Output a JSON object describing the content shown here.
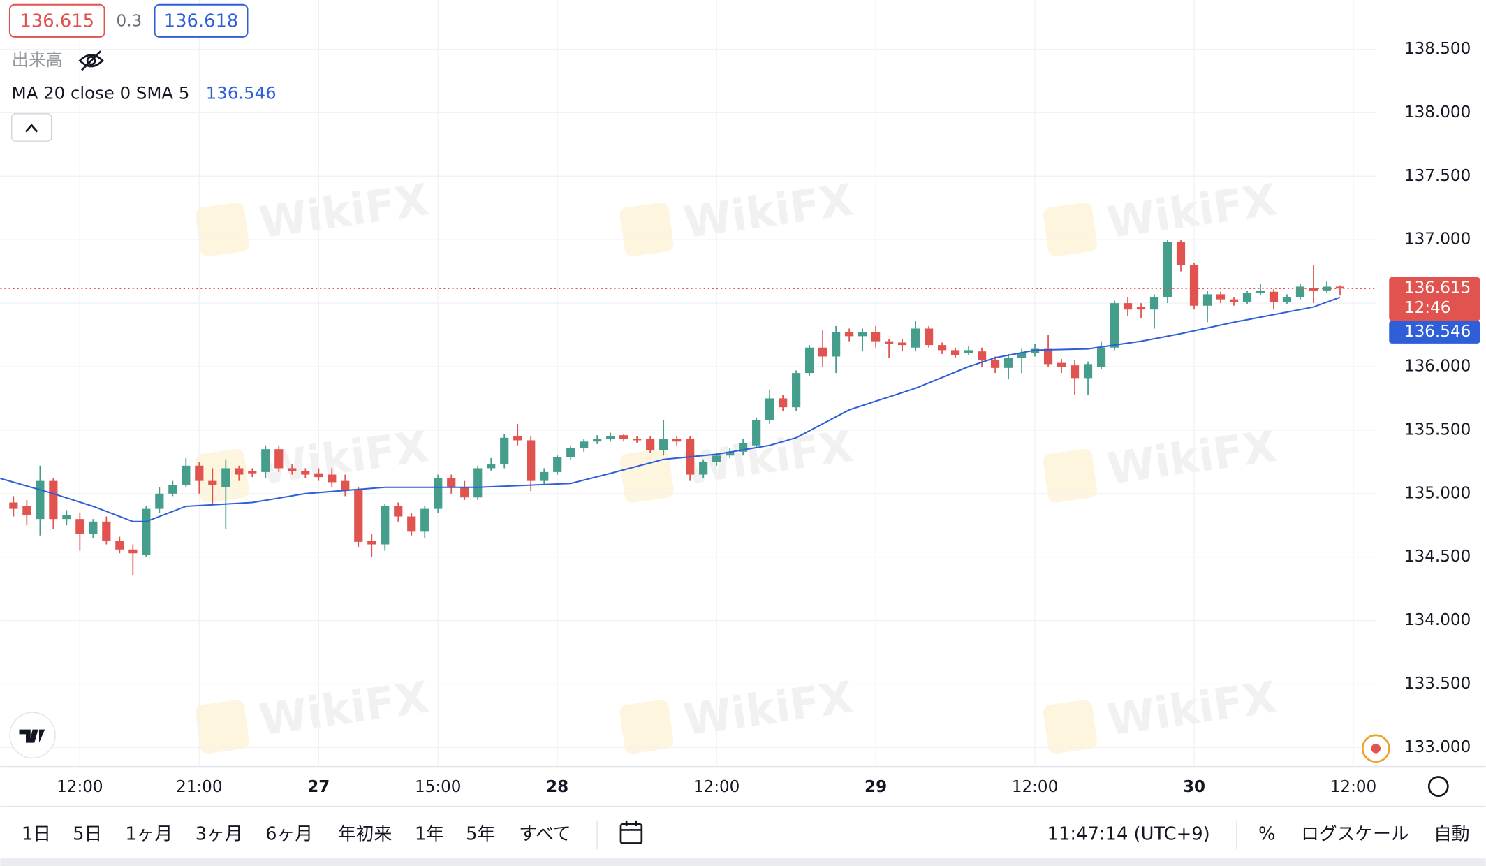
{
  "header": {
    "spread": "0.3",
    "ask": "136.618",
    "volume_label": "出来高",
    "indicator": "MA 20 close 0 SMA 5"
  },
  "watermark": "WikiFX",
  "toolbar": {
    "ranges": [
      "1日",
      "5日",
      "1ヶ月",
      "3ヶ月",
      "6ヶ月",
      "年初来",
      "1年",
      "5年",
      "すべて"
    ],
    "time": "11:47:14 (UTC+9)",
    "percent": "%",
    "log_scale": "ログスケール",
    "auto": "自動"
  },
  "chart_data": {
    "type": "candlestick",
    "x": [
      1,
      2,
      3,
      4,
      5,
      6,
      7,
      8,
      9,
      10,
      11,
      12,
      13,
      14,
      15,
      16,
      17,
      18,
      19,
      20,
      21,
      22,
      23,
      24,
      25,
      26,
      27,
      28,
      29,
      30,
      31,
      32,
      33,
      34,
      35,
      36,
      37,
      38,
      39,
      40,
      41,
      42,
      43,
      44,
      45,
      46,
      47,
      48,
      49,
      50,
      51,
      52,
      53,
      54,
      55,
      56,
      57,
      58,
      59,
      60,
      61,
      62,
      63,
      64,
      65,
      66,
      67,
      68,
      69,
      70,
      71,
      72,
      73,
      74,
      75,
      76,
      77,
      78,
      79,
      80,
      81,
      82,
      83,
      84,
      85,
      86,
      87,
      88,
      89,
      90,
      91,
      92,
      93,
      94,
      95,
      96,
      97,
      98,
      99,
      100,
      101
    ],
    "open": [
      134.93,
      134.9,
      134.8,
      135.1,
      134.8,
      134.8,
      134.68,
      134.78,
      134.63,
      134.56,
      134.52,
      134.88,
      135.0,
      135.07,
      135.22,
      135.1,
      135.05,
      135.2,
      135.18,
      135.17,
      135.35,
      135.2,
      135.18,
      135.16,
      135.15,
      135.1,
      135.03,
      134.63,
      134.6,
      134.9,
      134.82,
      134.7,
      134.88,
      135.12,
      135.05,
      134.97,
      135.2,
      135.23,
      135.45,
      135.42,
      135.1,
      135.17,
      135.29,
      135.36,
      135.41,
      135.43,
      135.46,
      135.43,
      135.43,
      135.34,
      135.43,
      135.43,
      135.15,
      135.25,
      135.3,
      135.33,
      135.38,
      135.58,
      135.75,
      135.68,
      135.95,
      136.15,
      136.08,
      136.27,
      136.24,
      136.27,
      136.2,
      136.19,
      136.15,
      136.3,
      136.17,
      136.13,
      136.11,
      136.12,
      136.05,
      135.99,
      136.07,
      136.11,
      136.14,
      136.03,
      136.01,
      135.91,
      136.0,
      136.15,
      136.5,
      136.47,
      136.45,
      136.55,
      136.98,
      136.8,
      136.48,
      136.57,
      136.53,
      136.51,
      136.58,
      136.59,
      136.51,
      136.55,
      136.62,
      136.6,
      136.63
    ],
    "high": [
      134.98,
      134.95,
      135.22,
      135.12,
      134.87,
      134.85,
      134.8,
      134.82,
      134.66,
      134.6,
      134.9,
      135.05,
      135.1,
      135.28,
      135.25,
      135.2,
      135.27,
      135.22,
      135.2,
      135.38,
      135.38,
      135.23,
      135.2,
      135.2,
      135.2,
      135.15,
      135.05,
      134.68,
      134.92,
      134.93,
      134.85,
      134.9,
      135.15,
      135.15,
      135.1,
      135.22,
      135.28,
      135.47,
      135.55,
      135.45,
      135.2,
      135.3,
      135.38,
      135.43,
      135.46,
      135.48,
      135.47,
      135.45,
      135.45,
      135.58,
      135.45,
      135.45,
      135.27,
      135.32,
      135.36,
      135.43,
      135.6,
      135.82,
      135.78,
      135.97,
      136.17,
      136.29,
      136.32,
      136.3,
      136.3,
      136.32,
      136.22,
      136.22,
      136.36,
      136.32,
      136.19,
      136.15,
      136.16,
      136.15,
      136.08,
      136.1,
      136.14,
      136.18,
      136.25,
      136.06,
      136.05,
      136.04,
      136.2,
      136.52,
      136.55,
      136.5,
      136.57,
      137.0,
      137.0,
      136.82,
      136.6,
      136.59,
      136.55,
      136.6,
      136.65,
      136.61,
      136.57,
      136.65,
      136.8,
      136.67,
      136.64
    ],
    "low": [
      134.82,
      134.75,
      134.67,
      134.72,
      134.75,
      134.55,
      134.65,
      134.6,
      134.53,
      134.36,
      134.5,
      134.85,
      134.98,
      135.05,
      135.0,
      134.9,
      134.72,
      135.1,
      135.13,
      135.12,
      135.17,
      135.15,
      135.12,
      135.1,
      135.05,
      134.98,
      134.58,
      134.5,
      134.55,
      134.78,
      134.67,
      134.65,
      134.85,
      135.0,
      134.95,
      134.95,
      135.18,
      135.2,
      135.38,
      135.02,
      135.07,
      135.15,
      135.27,
      135.33,
      135.39,
      135.41,
      135.41,
      135.4,
      135.32,
      135.3,
      135.38,
      135.1,
      135.12,
      135.22,
      135.28,
      135.3,
      135.36,
      135.55,
      135.65,
      135.65,
      135.93,
      136.0,
      135.95,
      136.2,
      136.12,
      136.15,
      136.07,
      136.12,
      136.12,
      136.15,
      136.1,
      136.07,
      136.09,
      136.0,
      135.95,
      135.9,
      135.95,
      136.08,
      136.0,
      135.95,
      135.78,
      135.78,
      135.98,
      136.13,
      136.4,
      136.38,
      136.3,
      136.5,
      136.75,
      136.45,
      136.35,
      136.5,
      136.48,
      136.49,
      136.56,
      136.45,
      136.49,
      136.53,
      136.5,
      136.58,
      136.56
    ],
    "close": [
      134.88,
      134.83,
      135.1,
      134.8,
      134.83,
      134.68,
      134.78,
      134.63,
      134.56,
      134.53,
      134.88,
      135.0,
      135.07,
      135.22,
      135.1,
      135.07,
      135.2,
      135.15,
      135.16,
      135.35,
      135.2,
      135.18,
      135.15,
      135.13,
      135.09,
      135.03,
      134.62,
      134.6,
      134.9,
      134.82,
      134.7,
      134.88,
      135.12,
      135.05,
      134.97,
      135.2,
      135.23,
      135.44,
      135.42,
      135.1,
      135.17,
      135.29,
      135.36,
      135.41,
      135.43,
      135.45,
      135.43,
      135.42,
      135.34,
      135.43,
      135.41,
      135.15,
      135.25,
      135.3,
      135.33,
      135.4,
      135.58,
      135.75,
      135.68,
      135.95,
      136.15,
      136.08,
      136.27,
      136.24,
      136.27,
      136.2,
      136.18,
      136.17,
      136.3,
      136.17,
      136.13,
      136.09,
      136.13,
      136.05,
      135.99,
      136.07,
      136.11,
      136.14,
      136.02,
      136.0,
      135.91,
      136.02,
      136.15,
      136.5,
      136.45,
      136.45,
      136.55,
      136.98,
      136.8,
      136.48,
      136.57,
      136.53,
      136.51,
      136.58,
      136.6,
      136.51,
      136.55,
      136.63,
      136.6,
      136.63,
      136.615
    ],
    "up_color": "#459e8c",
    "down_color": "#e0534f",
    "ma": {
      "color": "#2f5fd8",
      "x": [
        0,
        4,
        7,
        10,
        11,
        14,
        19,
        23,
        29,
        36,
        43,
        46,
        50,
        54,
        58,
        60,
        64,
        69,
        73,
        75,
        78,
        82,
        86,
        89,
        93,
        99,
        101
      ],
      "values": [
        135.12,
        135.0,
        134.9,
        134.78,
        134.78,
        134.9,
        134.93,
        135.0,
        135.05,
        135.05,
        135.08,
        135.16,
        135.27,
        135.31,
        135.38,
        135.44,
        135.66,
        135.83,
        136.0,
        136.07,
        136.13,
        136.14,
        136.2,
        136.26,
        136.35,
        136.47,
        136.546
      ]
    },
    "ma_label": "136.546",
    "last_price": {
      "value": 136.615,
      "label": "136.615",
      "countdown": "12:46",
      "color": "#e0534f"
    },
    "xlim": [
      0,
      103.7
    ],
    "ylim": [
      132.858,
      138.888
    ],
    "yticks": [
      {
        "value": 133,
        "label": "133.000"
      },
      {
        "value": 133.5,
        "label": "133.500"
      },
      {
        "value": 134,
        "label": "134.000"
      },
      {
        "value": 134.5,
        "label": "134.500"
      },
      {
        "value": 135,
        "label": "135.000"
      },
      {
        "value": 135.5,
        "label": "135.500"
      },
      {
        "value": 136,
        "label": "136.000"
      },
      {
        "value": 136.5,
        "label": "136.500"
      },
      {
        "value": 137,
        "label": "137.000"
      },
      {
        "value": 137.5,
        "label": "137.500"
      },
      {
        "value": 138,
        "label": "138.000"
      },
      {
        "value": 138.5,
        "label": "138.500"
      }
    ],
    "xticks": [
      {
        "value": 6,
        "label": "12:00"
      },
      {
        "value": 15,
        "label": "21:00"
      },
      {
        "value": 24,
        "label": "27"
      },
      {
        "value": 33,
        "label": "15:00"
      },
      {
        "value": 42,
        "label": "28"
      },
      {
        "value": 54,
        "label": "12:00"
      },
      {
        "value": 66,
        "label": "29"
      },
      {
        "value": 78,
        "label": "12:00"
      },
      {
        "value": 90,
        "label": "30"
      },
      {
        "value": 102,
        "label": "12:00"
      }
    ],
    "grid": true
  }
}
